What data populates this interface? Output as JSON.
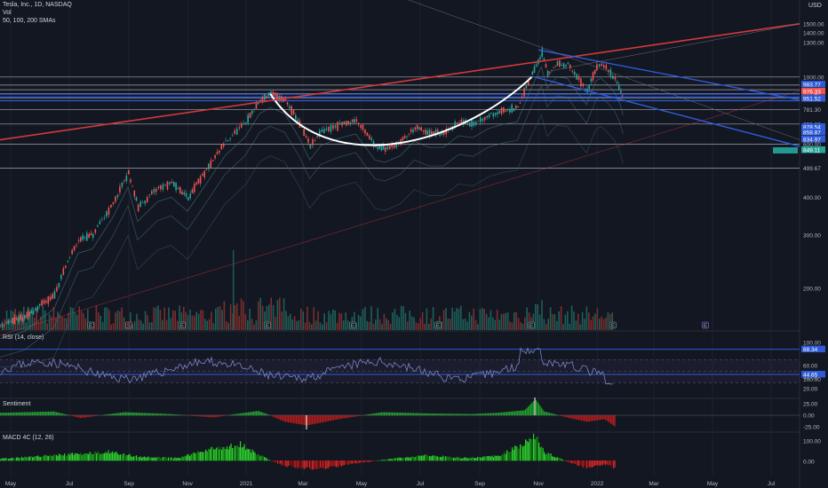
{
  "header": {
    "symbol": "Tesla, Inc., 1D, NASDAQ",
    "vol": "Vol",
    "smas": "50, 100, 200 SMAs",
    "currency": "USD"
  },
  "panes": {
    "rsi": "RSI (14, close)",
    "sentiment": "Sentiment",
    "macd": "MACD 4C (12, 26)"
  },
  "colors": {
    "background": "#131722",
    "up": "#26a69a",
    "down": "#ef5350",
    "red_trend": "#d23a3a",
    "blue_trend": "#2f5bd8",
    "rsi_line": "#7a86c4",
    "sent_pos": "#1fa52a",
    "sent_neg": "#b01d1d"
  },
  "chart_data": {
    "type": "candlestick",
    "x_axis_labels": [
      "May",
      "Jul",
      "Sep",
      "Nov",
      "2021",
      "Mar",
      "May",
      "Jul",
      "Sep",
      "Nov",
      "2022",
      "Mar",
      "May",
      "Jul"
    ],
    "y_axis_labels": [
      "1500.00",
      "1400.00",
      "1300.00",
      "1000.00",
      "940.50",
      "907.80",
      "881.40",
      "852.27",
      "781.30",
      "698.88",
      "600.00",
      "499.67",
      "400.00",
      "300.00",
      "200.00",
      "100.00"
    ],
    "price_tags": [
      {
        "value": "983.77",
        "color": "#2f5bd8"
      },
      {
        "value": "976.33",
        "color": "#ef5350"
      },
      {
        "value": "951.52",
        "color": "#2f5bd8"
      },
      {
        "value": "878.54",
        "color": "#2f5bd8"
      },
      {
        "value": "858.87",
        "color": "#2f5bd8"
      },
      {
        "value": "834.97",
        "color": "#2f5bd8"
      },
      {
        "value": "849.11",
        "color": "#26a69a"
      }
    ],
    "rsi_axis_labels": [
      "100.00",
      "60.00",
      "40.00",
      "20.00"
    ],
    "rsi_tags": [
      {
        "value": "88.34"
      },
      {
        "value": "44.65"
      }
    ],
    "sentiment_axis_labels": [
      "25.00",
      "0.00",
      "-25.00"
    ],
    "macd_axis_labels": [
      "100.00",
      "0.00"
    ],
    "price_path": [
      [
        "2020-04-15",
        150
      ],
      [
        "2020-05-15",
        160
      ],
      [
        "2020-06-15",
        190
      ],
      [
        "2020-07-10",
        290
      ],
      [
        "2020-07-25",
        300
      ],
      [
        "2020-08-15",
        380
      ],
      [
        "2020-08-31",
        480
      ],
      [
        "2020-09-10",
        370
      ],
      [
        "2020-10-01",
        430
      ],
      [
        "2020-10-15",
        445
      ],
      [
        "2020-11-01",
        400
      ],
      [
        "2020-11-20",
        490
      ],
      [
        "2020-12-10",
        610
      ],
      [
        "2020-12-31",
        705
      ],
      [
        "2021-01-15",
        840
      ],
      [
        "2021-01-26",
        880
      ],
      [
        "2021-02-10",
        840
      ],
      [
        "2021-02-25",
        700
      ],
      [
        "2021-03-08",
        590
      ],
      [
        "2021-03-20",
        660
      ],
      [
        "2021-04-10",
        700
      ],
      [
        "2021-04-25",
        720
      ],
      [
        "2021-05-15",
        590
      ],
      [
        "2021-05-25",
        580
      ],
      [
        "2021-06-10",
        610
      ],
      [
        "2021-06-25",
        680
      ],
      [
        "2021-07-10",
        650
      ],
      [
        "2021-07-25",
        650
      ],
      [
        "2021-08-10",
        710
      ],
      [
        "2021-08-25",
        700
      ],
      [
        "2021-09-10",
        750
      ],
      [
        "2021-09-25",
        775
      ],
      [
        "2021-10-10",
        790
      ],
      [
        "2021-10-25",
        1030
      ],
      [
        "2021-11-04",
        1200
      ],
      [
        "2021-11-10",
        1020
      ],
      [
        "2021-11-20",
        1110
      ],
      [
        "2021-12-01",
        1100
      ],
      [
        "2021-12-10",
        1000
      ],
      [
        "2021-12-21",
        900
      ],
      [
        "2021-12-31",
        1080
      ],
      [
        "2022-01-05",
        1100
      ],
      [
        "2022-01-12",
        1050
      ],
      [
        "2022-01-19",
        990
      ],
      [
        "2022-01-25",
        900
      ],
      [
        "2022-01-28",
        830
      ]
    ],
    "cup_curve": [
      [
        "2021-01-26",
        880
      ],
      [
        "2021-05-20",
        600
      ],
      [
        "2021-09-15",
        720
      ],
      [
        "2021-10-25",
        1000
      ]
    ],
    "horizontal_levels": [
      1000,
      940.5,
      907.8,
      881.4,
      852.27,
      781.3,
      698.88,
      600,
      499.67
    ]
  }
}
